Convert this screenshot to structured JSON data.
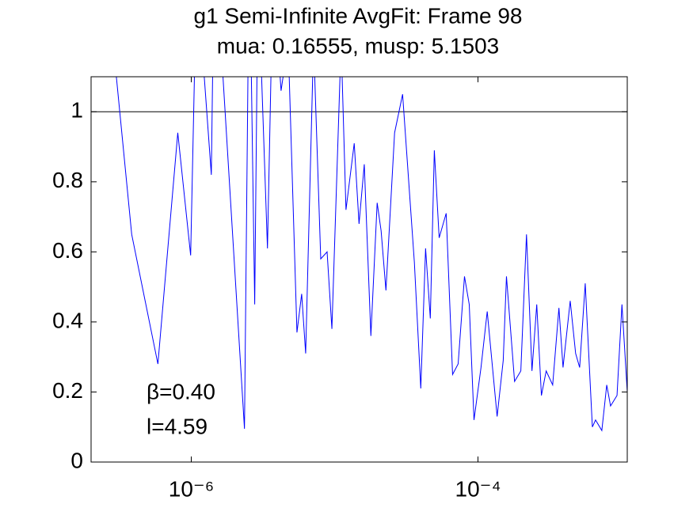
{
  "chart_data": {
    "type": "line",
    "title": "g1 Semi-Infinite AvgFit: Frame 98",
    "subtitle": "mua: 0.16555, musp: 5.1503",
    "annotations": [
      "β=0.40",
      "l=4.59"
    ],
    "x": [
      2.69e-07,
      3.84e-07,
      5.85e-07,
      8.05e-07,
      9.9e-07,
      1.09e-06,
      1.38e-06,
      1.45e-06,
      2.35e-06,
      2.54e-06,
      2.77e-06,
      2.92e-06,
      3.4e-06,
      3.72e-06,
      4.23e-06,
      4.74e-06,
      5.46e-06,
      5.89e-06,
      6.28e-06,
      7.13e-06,
      8e-06,
      8.86e-06,
      9.57e-06,
      1.11e-05,
      1.2e-05,
      1.37e-05,
      1.48e-05,
      1.61e-05,
      1.79e-05,
      1.98e-05,
      2.11e-05,
      2.28e-05,
      2.62e-05,
      2.98e-05,
      3.6e-05,
      3.99e-05,
      4.31e-05,
      4.65e-05,
      4.96e-05,
      5.36e-05,
      6e-05,
      6.65e-05,
      7.27e-05,
      8.05e-05,
      8.69e-05,
      9.38e-05,
      0.000105,
      0.000116,
      0.000136,
      0.00015,
      0.000158,
      0.00018,
      0.000199,
      0.000218,
      0.000238,
      0.000257,
      0.000277,
      0.000299,
      0.000332,
      0.000367,
      0.000392,
      0.00044,
      0.00048,
      0.000512,
      0.00056,
      0.000628,
      0.000661,
      0.000731,
      0.000791,
      0.000841,
      0.000933,
      0.00101,
      0.0011
    ],
    "series": [
      {
        "color": "#0000ff",
        "values": [
          1.3,
          0.65,
          0.28,
          0.94,
          0.59,
          1.4,
          0.82,
          1.5,
          0.095,
          1.5,
          0.45,
          1.4,
          0.61,
          1.4,
          1.06,
          1.2,
          0.37,
          0.48,
          0.31,
          1.2,
          0.58,
          0.6,
          0.38,
          1.2,
          0.72,
          0.91,
          0.68,
          0.85,
          0.36,
          0.74,
          0.66,
          0.49,
          0.94,
          1.05,
          0.57,
          0.21,
          0.61,
          0.41,
          0.89,
          0.64,
          0.71,
          0.25,
          0.28,
          0.53,
          0.45,
          0.12,
          0.27,
          0.43,
          0.13,
          0.29,
          0.53,
          0.23,
          0.26,
          0.65,
          0.26,
          0.45,
          0.19,
          0.26,
          0.22,
          0.44,
          0.27,
          0.46,
          0.31,
          0.27,
          0.51,
          0.1,
          0.12,
          0.09,
          0.22,
          0.16,
          0.19,
          0.45,
          0.2
        ]
      }
    ],
    "hline": 1,
    "xscale": "log",
    "xlim": [
      2e-07,
      0.0011
    ],
    "xticks": [
      {
        "value": 1e-06,
        "label": "10⁻⁶"
      },
      {
        "value": 0.0001,
        "label": "10⁻⁴"
      }
    ],
    "ylim": [
      0,
      1.1
    ],
    "yticks": [
      0,
      0.2,
      0.4,
      0.6,
      0.8,
      1
    ]
  }
}
